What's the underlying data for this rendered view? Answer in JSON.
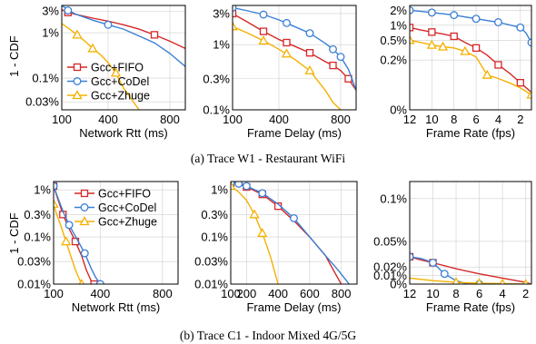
{
  "captions": [
    "(a)  Trace W1 - Restaurant WiFi",
    "(b)  Trace C1 - Indoor Mixed 4G/5G"
  ],
  "ylabel": "1 - CDF",
  "colors": {
    "fifo": "#d62728",
    "codel": "#3a7fd5",
    "zhuge": "#f5b000"
  },
  "chart_data": [
    {
      "type": "line",
      "xlabel": "Network Rtt (ms)",
      "yscale": "log",
      "xlim": [
        100,
        900
      ],
      "ylim": [
        0.02,
        4
      ],
      "xticks": [
        100,
        400,
        800
      ],
      "xticklabels": [
        "100",
        "400",
        "800"
      ],
      "yticks": [
        3,
        1,
        0.1,
        0.03
      ],
      "yticklabels": [
        "3%",
        "1%",
        "0.1%",
        "0.03%"
      ],
      "legend": {
        "position": "bottom-left",
        "entries": [
          "Gcc+FIFO",
          "Gcc+CoDel",
          "Gcc+Zhuge"
        ]
      },
      "series": [
        {
          "name": "Gcc+FIFO",
          "marker": "square",
          "x": [
            100,
            120,
            140,
            200,
            300,
            400,
            500,
            600,
            700,
            800,
            900
          ],
          "y": [
            3.2,
            3.0,
            2.8,
            2.5,
            2.1,
            1.8,
            1.5,
            1.2,
            0.9,
            0.65,
            0.45
          ],
          "markers_x": [
            140,
            700
          ]
        },
        {
          "name": "Gcc+CoDel",
          "marker": "circle",
          "x": [
            100,
            120,
            140,
            200,
            300,
            400,
            500,
            600,
            700,
            800,
            900
          ],
          "y": [
            4.0,
            3.6,
            3.1,
            2.5,
            1.9,
            1.5,
            1.2,
            0.85,
            0.6,
            0.35,
            0.18
          ],
          "markers_x": [
            140,
            400
          ]
        },
        {
          "name": "Gcc+Zhuge",
          "marker": "triangle",
          "x": [
            100,
            150,
            200,
            250,
            300,
            350,
            400,
            450,
            500,
            550,
            600
          ],
          "y": [
            1.6,
            1.2,
            0.9,
            0.65,
            0.45,
            0.33,
            0.22,
            0.13,
            0.06,
            0.035,
            0.02
          ],
          "markers_x": [
            200,
            300,
            450
          ]
        }
      ]
    },
    {
      "type": "line",
      "xlabel": "Frame Delay (ms)",
      "yscale": "log",
      "xlim": [
        100,
        900
      ],
      "ylim": [
        0.1,
        4
      ],
      "xticks": [
        100,
        400,
        800
      ],
      "xticklabels": [
        "100",
        "400",
        "800"
      ],
      "yticks": [
        3,
        1,
        0.3,
        0.1
      ],
      "yticklabels": [
        "3%",
        "1%",
        "0.3%",
        "0.1%"
      ],
      "series": [
        {
          "name": "Gcc+FIFO",
          "marker": "square",
          "x": [
            100,
            200,
            300,
            400,
            500,
            600,
            700,
            750,
            800,
            850,
            900
          ],
          "y": [
            3.0,
            2.2,
            1.6,
            1.2,
            0.95,
            0.75,
            0.55,
            0.48,
            0.4,
            0.3,
            0.2
          ],
          "markers_x": [
            100,
            300,
            450,
            600,
            750,
            850
          ]
        },
        {
          "name": "Gcc+CoDel",
          "marker": "circle",
          "x": [
            100,
            200,
            300,
            400,
            500,
            600,
            700,
            750,
            800,
            850,
            900
          ],
          "y": [
            3.7,
            3.3,
            2.9,
            2.4,
            1.9,
            1.5,
            1.05,
            0.85,
            0.65,
            0.42,
            0.2
          ],
          "markers_x": [
            100,
            300,
            450,
            600,
            750,
            800
          ]
        },
        {
          "name": "Gcc+Zhuge",
          "marker": "triangle",
          "x": [
            100,
            200,
            300,
            400,
            500,
            600,
            700,
            750,
            800
          ],
          "y": [
            1.9,
            1.5,
            1.15,
            0.85,
            0.6,
            0.4,
            0.2,
            0.13,
            0.1
          ],
          "markers_x": [
            100,
            300,
            450,
            600
          ]
        }
      ]
    },
    {
      "type": "line",
      "xlabel": "Frame Rate (fps)",
      "yscale": "log",
      "xlim": [
        12,
        1
      ],
      "ylim": [
        0.02,
        2.5
      ],
      "xticks": [
        12,
        10,
        8,
        6,
        4,
        2
      ],
      "xticklabels": [
        "12",
        "10",
        "8",
        "6",
        "4",
        "2"
      ],
      "yticks": [
        2,
        1,
        0.5,
        0.2,
        0.02
      ],
      "yticklabels": [
        "2%",
        "1%",
        "0.5%",
        "0.2%",
        "0%"
      ],
      "series": [
        {
          "name": "Gcc+FIFO",
          "marker": "square",
          "x": [
            12,
            11,
            10,
            9,
            8,
            7,
            6,
            5,
            4,
            3,
            2,
            1
          ],
          "y": [
            0.9,
            0.8,
            0.73,
            0.67,
            0.6,
            0.45,
            0.35,
            0.25,
            0.16,
            0.11,
            0.07,
            0.045
          ],
          "markers_x": [
            12,
            10,
            8,
            6,
            4,
            2
          ]
        },
        {
          "name": "Gcc+CoDel",
          "marker": "circle",
          "x": [
            12,
            10,
            8,
            6,
            4,
            2,
            1.5,
            1
          ],
          "y": [
            2.0,
            1.8,
            1.6,
            1.35,
            1.15,
            0.9,
            0.7,
            0.45
          ],
          "markers_x": [
            12,
            10,
            8,
            6,
            4,
            2,
            1
          ]
        },
        {
          "name": "Gcc+Zhuge",
          "marker": "triangle",
          "x": [
            12,
            11,
            10,
            9,
            8,
            7,
            6,
            5,
            4,
            3,
            2,
            1
          ],
          "y": [
            0.5,
            0.45,
            0.4,
            0.37,
            0.35,
            0.3,
            0.23,
            0.1,
            0.085,
            0.07,
            0.055,
            0.04
          ],
          "markers_x": [
            12,
            10,
            9,
            7,
            5,
            1
          ]
        }
      ]
    },
    {
      "type": "line",
      "xlabel": "Network Rtt (ms)",
      "yscale": "log",
      "xlim": [
        100,
        900
      ],
      "ylim": [
        0.01,
        1.5
      ],
      "xticks": [
        100,
        400,
        800
      ],
      "xticklabels": [
        "100",
        "400",
        "800"
      ],
      "yticks": [
        1,
        0.3,
        0.1,
        0.03,
        0.01
      ],
      "yticklabels": [
        "1%",
        "0.3%",
        "0.1%",
        "0.03%",
        "0.01%"
      ],
      "legend": {
        "position": "top-right",
        "entries": [
          "Gcc+FIFO",
          "Gcc+CoDel",
          "Gcc+Zhuge"
        ]
      },
      "series": [
        {
          "name": "Gcc+FIFO",
          "marker": "square",
          "x": [
            100,
            130,
            160,
            200,
            240,
            280,
            310,
            340,
            360
          ],
          "y": [
            1.2,
            0.6,
            0.3,
            0.15,
            0.08,
            0.04,
            0.02,
            0.012,
            0.01
          ],
          "markers_x": [
            100,
            160,
            240,
            360
          ]
        },
        {
          "name": "Gcc+CoDel",
          "marker": "circle",
          "x": [
            100,
            130,
            160,
            200,
            250,
            300,
            340,
            370,
            400
          ],
          "y": [
            1.2,
            0.65,
            0.35,
            0.18,
            0.09,
            0.045,
            0.022,
            0.014,
            0.01
          ],
          "markers_x": [
            100,
            200,
            300,
            400
          ]
        },
        {
          "name": "Gcc+Zhuge",
          "marker": "triangle",
          "x": [
            100,
            120,
            150,
            180,
            210,
            240,
            260,
            280
          ],
          "y": [
            0.5,
            0.3,
            0.16,
            0.08,
            0.04,
            0.02,
            0.014,
            0.01
          ],
          "markers_x": [
            100,
            180,
            280
          ]
        }
      ]
    },
    {
      "type": "line",
      "xlabel": "Frame Delay (ms)",
      "yscale": "log",
      "xlim": [
        100,
        900
      ],
      "ylim": [
        0.01,
        1.5
      ],
      "xticks": [
        100,
        200,
        400,
        600,
        800
      ],
      "xticklabels": [
        "100",
        "200",
        "400",
        "600",
        "800"
      ],
      "yticks": [
        1,
        0.3,
        0.1,
        0.03,
        0.01
      ],
      "yticklabels": [
        "1%",
        "0.3%",
        "0.1%",
        "0.03%",
        "0.01%"
      ],
      "series": [
        {
          "name": "Gcc+FIFO",
          "marker": "square",
          "x": [
            100,
            150,
            200,
            300,
            400,
            500,
            600,
            700,
            750,
            800
          ],
          "y": [
            1.4,
            1.3,
            1.15,
            0.8,
            0.45,
            0.22,
            0.1,
            0.04,
            0.02,
            0.01
          ],
          "markers_x": [
            100,
            200,
            300,
            400
          ]
        },
        {
          "name": "Gcc+CoDel",
          "marker": "circle",
          "x": [
            100,
            150,
            200,
            300,
            400,
            500,
            600,
            700,
            780,
            850
          ],
          "y": [
            1.4,
            1.35,
            1.2,
            0.85,
            0.5,
            0.25,
            0.1,
            0.04,
            0.02,
            0.01
          ],
          "markers_x": [
            100,
            150,
            200,
            300,
            500
          ]
        },
        {
          "name": "Gcc+Zhuge",
          "marker": "triangle",
          "x": [
            100,
            150,
            200,
            250,
            300,
            350,
            400
          ],
          "y": [
            1.2,
            0.9,
            0.6,
            0.3,
            0.12,
            0.04,
            0.01
          ],
          "markers_x": [
            100,
            250,
            300
          ]
        }
      ]
    },
    {
      "type": "line",
      "xlabel": "Frame Rate (fps)",
      "yscale": "linear",
      "xlim": [
        12,
        1.5
      ],
      "ylim": [
        0,
        0.12
      ],
      "xticks": [
        12,
        10,
        8,
        6,
        4,
        2
      ],
      "xticklabels": [
        "12",
        "10",
        "8",
        "6",
        "4",
        "2"
      ],
      "yticks": [
        0.1,
        0.05,
        0.02,
        0.01,
        0
      ],
      "yticklabels": [
        "0.1%",
        "0.05%",
        "0.02%",
        "0.01%",
        "0%"
      ],
      "series": [
        {
          "name": "Gcc+FIFO",
          "marker": "square",
          "x": [
            12,
            11,
            10,
            8,
            6,
            4,
            2,
            1.5
          ],
          "y": [
            0.032,
            0.028,
            0.025,
            0.018,
            0.012,
            0.007,
            0.002,
            0.0
          ],
          "markers_x": [
            12,
            10
          ]
        },
        {
          "name": "Gcc+CoDel",
          "marker": "circle",
          "x": [
            12,
            11,
            10,
            9,
            8,
            7,
            6,
            4,
            2,
            1.5
          ],
          "y": [
            0.032,
            0.03,
            0.025,
            0.012,
            0.004,
            0.0,
            0.0,
            0.0,
            0.0,
            0.0
          ],
          "markers_x": [
            12,
            10,
            9,
            6
          ]
        },
        {
          "name": "Gcc+Zhuge",
          "marker": "triangle",
          "x": [
            12,
            10,
            8,
            6,
            4,
            2,
            1.5
          ],
          "y": [
            0.007,
            0.004,
            0.002,
            0.001,
            0.0005,
            0.0,
            0.0
          ],
          "markers_x": [
            8,
            6,
            4,
            2
          ]
        }
      ]
    }
  ]
}
